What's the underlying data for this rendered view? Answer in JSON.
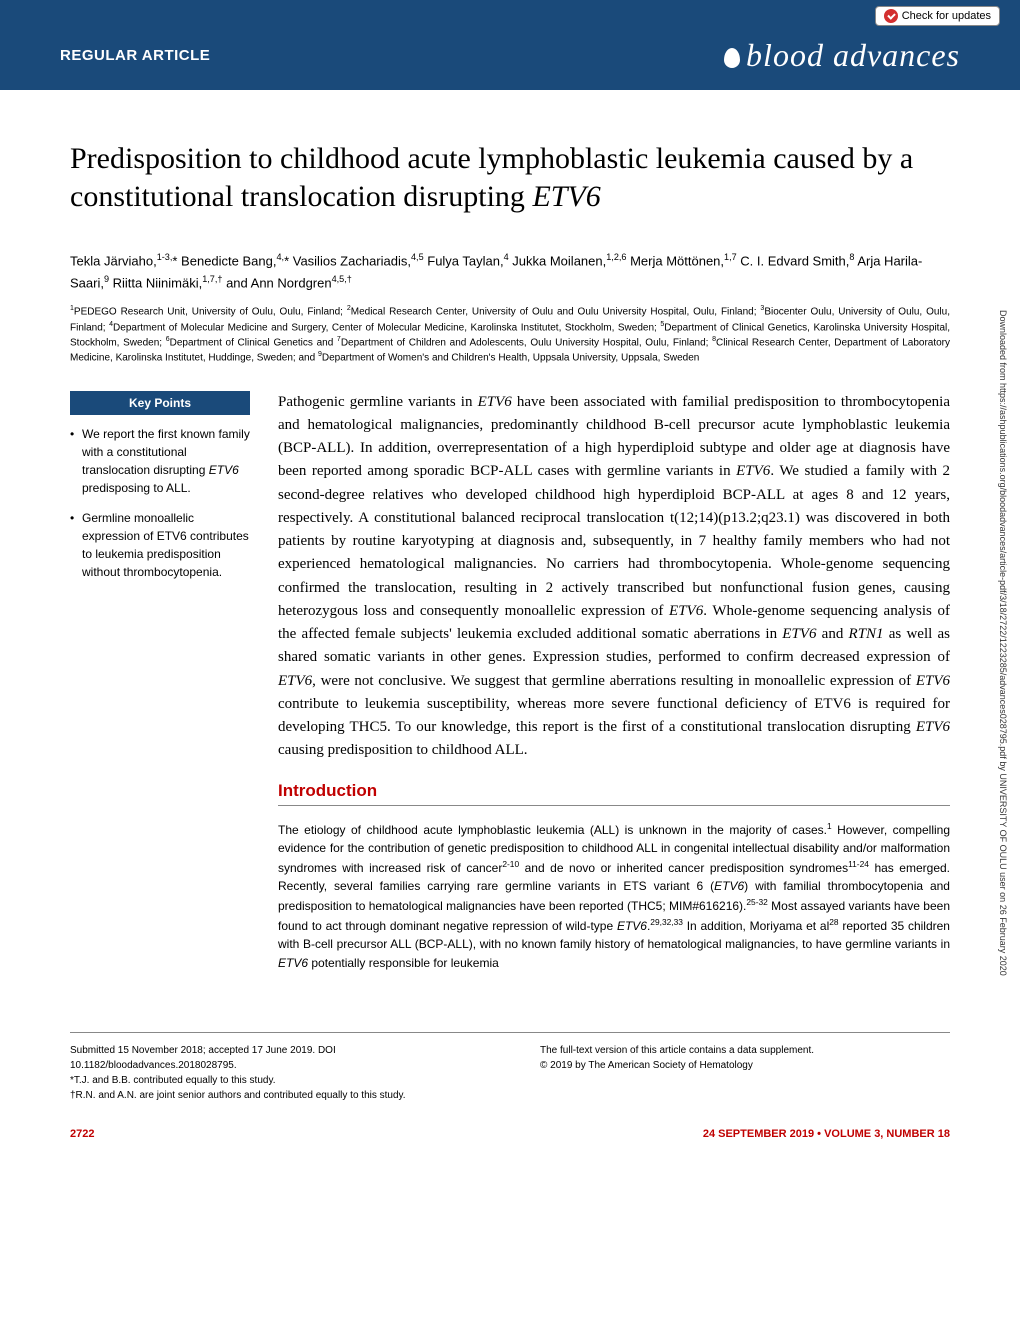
{
  "check_updates": "Check for updates",
  "header": {
    "article_type": "REGULAR ARTICLE",
    "journal_name": "blood advances"
  },
  "title_pre": "Predisposition to childhood acute lymphoblastic leukemia caused by a constitutional translocation disrupting ",
  "title_gene": "ETV6",
  "authors_html": "Tekla Järviaho,<sup>1-3,</sup>* Benedicte Bang,<sup>4,</sup>* Vasilios Zachariadis,<sup>4,5</sup> Fulya Taylan,<sup>4</sup> Jukka Moilanen,<sup>1,2,6</sup> Merja Möttönen,<sup>1,7</sup> C. I. Edvard Smith,<sup>8</sup> Arja Harila-Saari,<sup>9</sup> Riitta Niinimäki,<sup>1,7,†</sup> and Ann Nordgren<sup>4,5,†</sup>",
  "affiliations_html": "<sup>1</sup>PEDEGO Research Unit, University of Oulu, Oulu, Finland; <sup>2</sup>Medical Research Center, University of Oulu and Oulu University Hospital, Oulu, Finland; <sup>3</sup>Biocenter Oulu, University of Oulu, Oulu, Finland; <sup>4</sup>Department of Molecular Medicine and Surgery, Center of Molecular Medicine, Karolinska Institutet, Stockholm, Sweden; <sup>5</sup>Department of Clinical Genetics, Karolinska University Hospital, Stockholm, Sweden; <sup>6</sup>Department of Clinical Genetics and <sup>7</sup>Department of Children and Adolescents, Oulu University Hospital, Oulu, Finland; <sup>8</sup>Clinical Research Center, Department of Laboratory Medicine, Karolinska Institutet, Huddinge, Sweden; and <sup>9</sup>Department of Women's and Children's Health, Uppsala University, Uppsala, Sweden",
  "key_points": {
    "header": "Key Points",
    "items": [
      "We report the first known family with a constitutional translocation disrupting <em>ETV6</em> predisposing to ALL.",
      "Germline monoallelic expression of ETV6 contributes to leukemia predisposition without thrombocytopenia."
    ]
  },
  "abstract_html": "Pathogenic germline variants in <em>ETV6</em> have been associated with familial predisposition to thrombocytopenia and hematological malignancies, predominantly childhood B-cell precursor acute lymphoblastic leukemia (BCP-ALL). In addition, overrepresentation of a high hyperdiploid subtype and older age at diagnosis have been reported among sporadic BCP-ALL cases with germline variants in <em>ETV6</em>. We studied a family with 2 second-degree relatives who developed childhood high hyperdiploid BCP-ALL at ages 8 and 12 years, respectively. A constitutional balanced reciprocal translocation t(12;14)(p13.2;q23.1) was discovered in both patients by routine karyotyping at diagnosis and, subsequently, in 7 healthy family members who had not experienced hematological malignancies. No carriers had thrombocytopenia. Whole-genome sequencing confirmed the translocation, resulting in 2 actively transcribed but nonfunctional fusion genes, causing heterozygous loss and consequently monoallelic expression of <em>ETV6</em>. Whole-genome sequencing analysis of the affected female subjects' leukemia excluded additional somatic aberrations in <em>ETV6</em> and <em>RTN1</em> as well as shared somatic variants in other genes. Expression studies, performed to confirm decreased expression of <em>ETV6</em>, were not conclusive. We suggest that germline aberrations resulting in monoallelic expression of <em>ETV6</em> contribute to leukemia susceptibility, whereas more severe functional deficiency of ETV6 is required for developing THC5. To our knowledge, this report is the first of a constitutional translocation disrupting <em>ETV6</em> causing predisposition to childhood ALL.",
  "section_heading": "Introduction",
  "intro_html": "The etiology of childhood acute lymphoblastic leukemia (ALL) is unknown in the majority of cases.<sup>1</sup> However, compelling evidence for the contribution of genetic predisposition to childhood ALL in congenital intellectual disability and/or malformation syndromes with increased risk of cancer<sup>2-10</sup> and de novo or inherited cancer predisposition syndromes<sup>11-24</sup> has emerged. Recently, several families carrying rare germline variants in ETS variant 6 (<em>ETV6</em>) with familial thrombocytopenia and predisposition to hematological malignancies have been reported (THC5; MIM#616216).<sup>25-32</sup> Most assayed variants have been found to act through dominant negative repression of wild-type <em>ETV6</em>.<sup>29,32,33</sup> In addition, Moriyama et al<sup>28</sup> reported 35 children with B-cell precursor ALL (BCP-ALL), with no known family history of hematological malignancies, to have germline variants in <em>ETV6</em> potentially responsible for leukemia",
  "footer_left": [
    "Submitted 15 November 2018; accepted 17 June 2019. DOI 10.1182/bloodadvances.2018028795.",
    "*T.J. and B.B. contributed equally to this study.",
    "†R.N. and A.N. are joint senior authors and contributed equally to this study."
  ],
  "footer_right": [
    "The full-text version of this article contains a data supplement.",
    "© 2019 by The American Society of Hematology"
  ],
  "page_number": "2722",
  "issue_info": "24 SEPTEMBER 2019 • VOLUME 3, NUMBER 18",
  "side_text": "Downloaded from https://ashpublications.org/bloodadvances/article-pdf/3/18/2722/1223285/advances028795.pdf by UNIVERSITY OF OULU user on 26 February 2020",
  "colors": {
    "header_bg": "#1a4a7a",
    "accent_red": "#c00000",
    "check_icon": "#d32f2f"
  }
}
